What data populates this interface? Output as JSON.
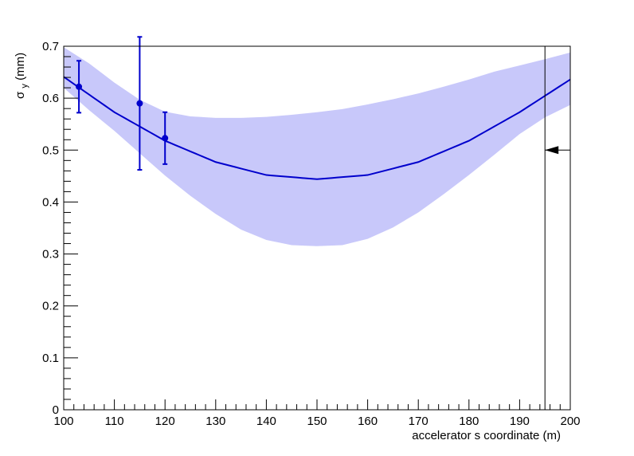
{
  "chart_data": {
    "type": "line",
    "xlabel": "accelerator s coordinate (m)",
    "ylabel_main": "σ",
    "ylabel_sub": "y",
    "ylabel_unit": " (mm)",
    "xlim": [
      100,
      200
    ],
    "ylim": [
      0,
      0.7
    ],
    "x_ticks": [
      100,
      110,
      120,
      130,
      140,
      150,
      160,
      170,
      180,
      190,
      200
    ],
    "y_ticks": [
      0,
      0.1,
      0.2,
      0.3,
      0.4,
      0.5,
      0.6,
      0.7
    ],
    "x_tick_labels": [
      "100",
      "110",
      "120",
      "130",
      "140",
      "150",
      "160",
      "170",
      "180",
      "190",
      "200"
    ],
    "y_tick_labels": [
      "0",
      "0.1",
      "0.2",
      "0.3",
      "0.4",
      "0.5",
      "0.6",
      "0.7"
    ],
    "grid": false,
    "colors": {
      "fit": "#0000cc",
      "band": "#c8c8fa",
      "points": "#0000cc",
      "marker": "#000000"
    },
    "fit_curve": {
      "x": [
        100,
        110,
        120,
        130,
        140,
        150,
        160,
        170,
        180,
        190,
        200
      ],
      "y": [
        0.641,
        0.573,
        0.518,
        0.477,
        0.452,
        0.444,
        0.452,
        0.477,
        0.518,
        0.573,
        0.636
      ]
    },
    "band": {
      "x": [
        100,
        105,
        110,
        115,
        120,
        125,
        130,
        135,
        140,
        145,
        150,
        155,
        160,
        165,
        170,
        175,
        180,
        185,
        190,
        195,
        200
      ],
      "upper": [
        0.698,
        0.667,
        0.63,
        0.597,
        0.574,
        0.565,
        0.562,
        0.562,
        0.564,
        0.568,
        0.573,
        0.579,
        0.588,
        0.598,
        0.609,
        0.622,
        0.636,
        0.651,
        0.663,
        0.675,
        0.688
      ],
      "lower": [
        0.62,
        0.577,
        0.537,
        0.494,
        0.451,
        0.412,
        0.377,
        0.347,
        0.327,
        0.317,
        0.315,
        0.317,
        0.329,
        0.351,
        0.38,
        0.415,
        0.452,
        0.491,
        0.531,
        0.563,
        0.587
      ]
    },
    "points": [
      {
        "x": 103,
        "y": 0.622,
        "err": 0.05
      },
      {
        "x": 115,
        "y": 0.59,
        "err": 0.128
      },
      {
        "x": 120,
        "y": 0.523,
        "err": 0.05
      }
    ],
    "marker_line_x": 195,
    "arrow_y": 0.5
  }
}
